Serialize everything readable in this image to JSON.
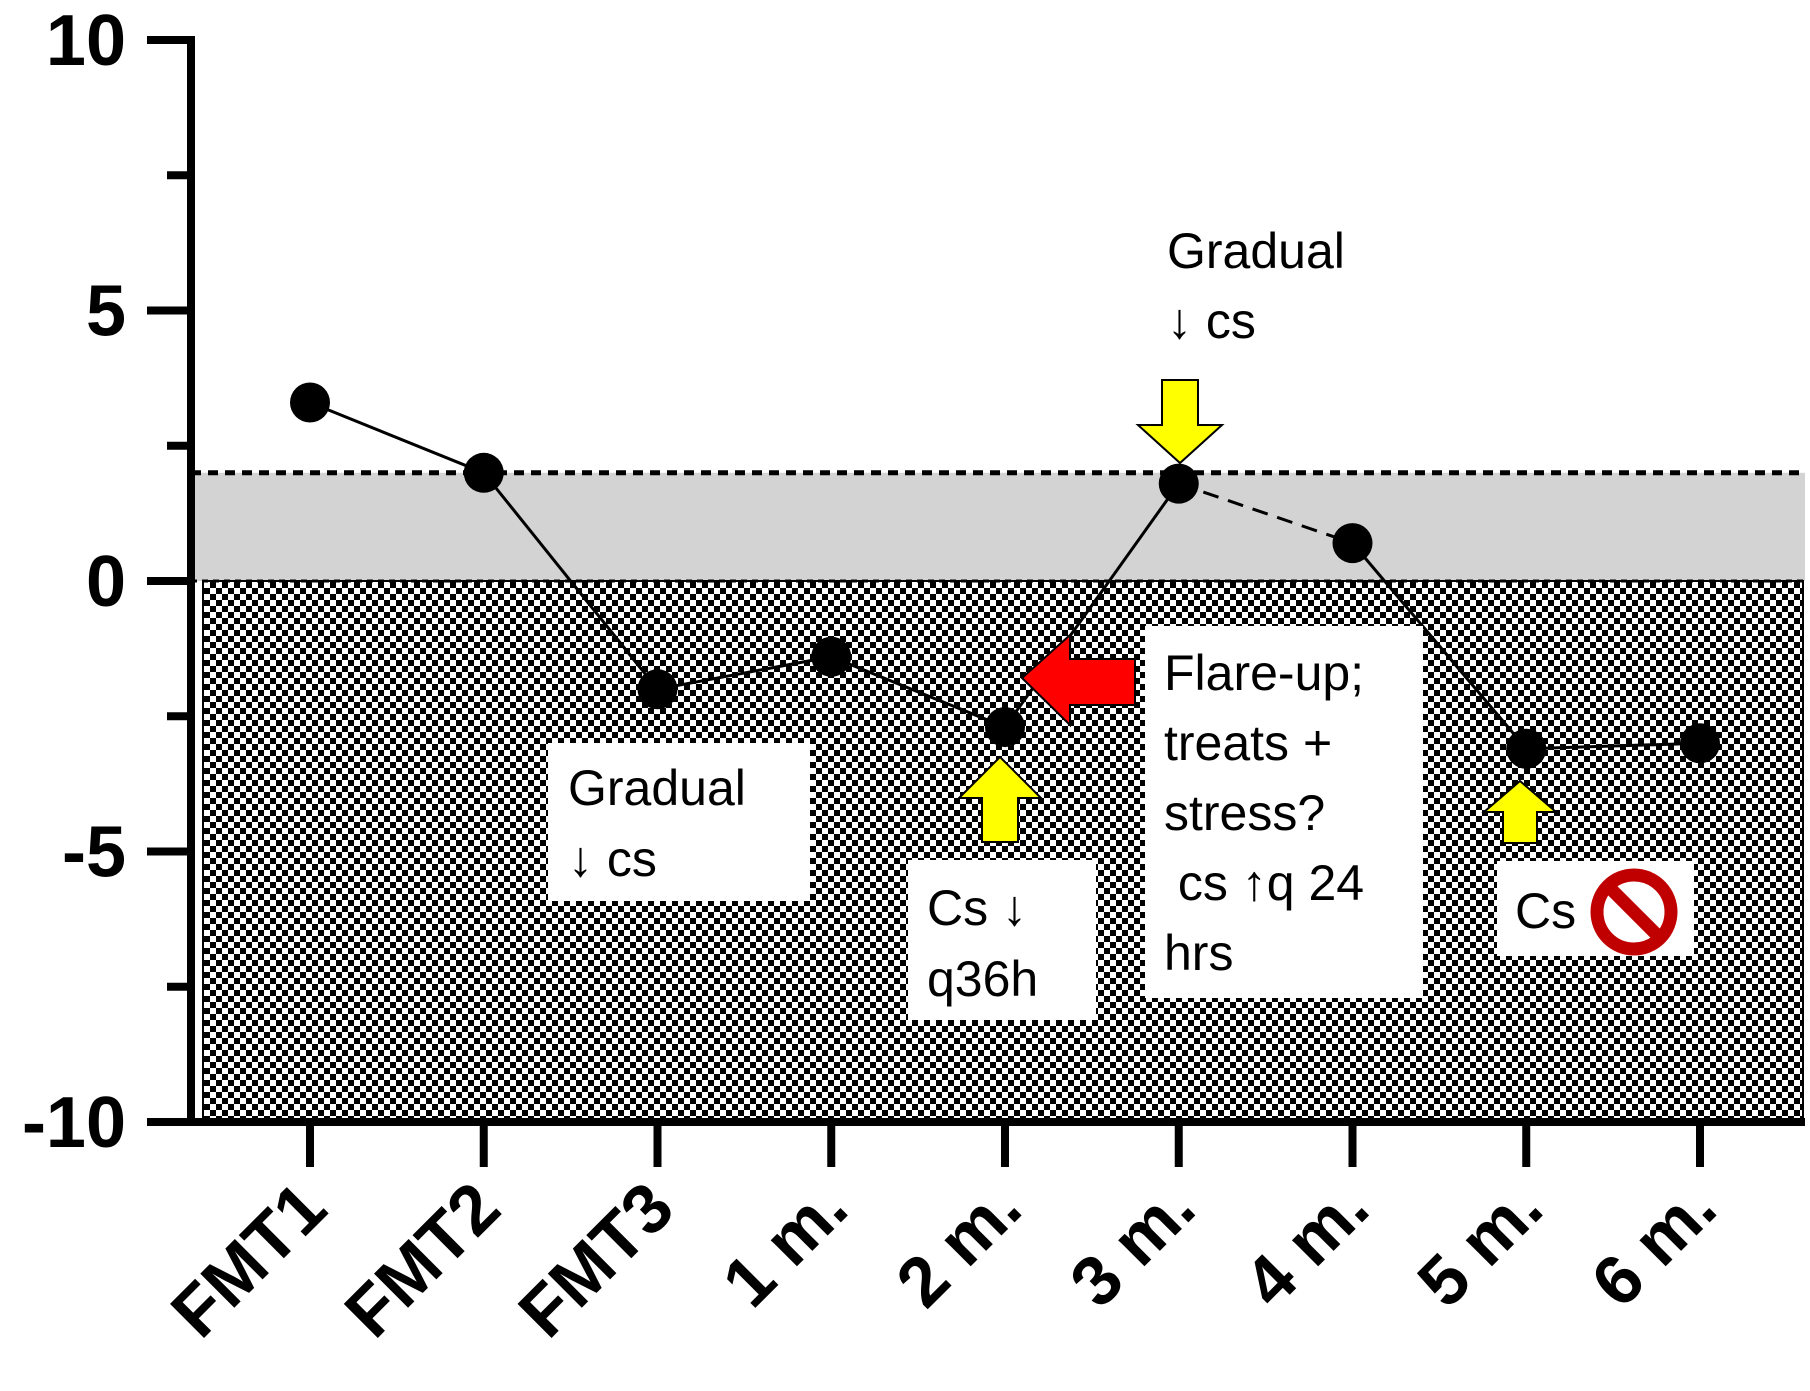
{
  "chart_data": {
    "type": "line",
    "title": "",
    "xlabel": "",
    "ylabel": "",
    "categories": [
      "FMT1",
      "FMT2",
      "FMT3",
      "1 m.",
      "2 m.",
      "3 m.",
      "4 m.",
      "5 m.",
      "6 m."
    ],
    "values": [
      3.3,
      2.0,
      -2.0,
      -1.4,
      -2.7,
      1.8,
      0.7,
      -3.1,
      -3.0
    ],
    "dashed_segments": [
      [
        5,
        6
      ]
    ],
    "ylim": [
      -10,
      10
    ],
    "y_ticks": [
      "10",
      "5",
      "0",
      "-5",
      "-10"
    ],
    "y_tick_values": [
      10,
      5,
      0,
      -5,
      -10
    ],
    "y_minor_ticks": [
      7.5,
      2.5,
      -2.5,
      -7.5
    ],
    "bands": [
      {
        "from": 0,
        "to": 2,
        "style": "solid-light-gray",
        "color": "#d3d3d3",
        "border": "dashed"
      },
      {
        "from": -10,
        "to": 0,
        "style": "checkerboard",
        "color": "#000000"
      }
    ],
    "grid": false,
    "legend": "none",
    "colors": {
      "line": "#000000",
      "marker": "#000000",
      "yellow_arrow": "#ffff00",
      "red_arrow": "#ff0000",
      "prohibition": "#c00000"
    },
    "annotations": {
      "gradual_left": [
        "Gradual",
        "↓ cs"
      ],
      "cs_q36h": [
        "Cs ↓",
        "q36h"
      ],
      "gradual_top": [
        "Gradual",
        "↓ cs"
      ],
      "flare": [
        "Flare-up;",
        "treats +",
        "stress?",
        " cs ↑q 24",
        "hrs"
      ],
      "cs_stop": "Cs"
    },
    "arrows": [
      {
        "color": "yellow",
        "direction": "up",
        "at": "2 m."
      },
      {
        "color": "yellow",
        "direction": "down",
        "at": "3 m."
      },
      {
        "color": "yellow",
        "direction": "up",
        "at": "5 m."
      },
      {
        "color": "red",
        "direction": "left",
        "near": "2 m."
      }
    ],
    "icons": [
      "prohibition-icon"
    ]
  }
}
